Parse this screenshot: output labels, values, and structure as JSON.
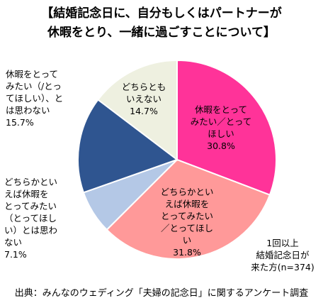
{
  "chart_data": {
    "type": "pie",
    "title_lines": [
      "【結婚記念日に、自分もしくはパートナーが",
      "休暇をとり、一緒に過ごすことについて】"
    ],
    "slices": [
      {
        "label_lines": [
          "休暇をとって",
          "みたい／とって",
          "ほしい"
        ],
        "value": 30.8,
        "value_label": "30.8%",
        "color": "#ff3399"
      },
      {
        "label_lines": [
          "どちらかとい",
          "えば休暇を",
          "とってみたい",
          "／とってほし",
          "い"
        ],
        "value": 31.8,
        "value_label": "31.8%",
        "color": "#ff9999"
      },
      {
        "label_lines": [
          "どちらかとい",
          "えば休暇を",
          "とってみたい",
          "（とってほし",
          "い）とは思わ",
          "ない"
        ],
        "value": 7.1,
        "value_label": "7.1%",
        "color": "#b4c8e6"
      },
      {
        "label_lines": [
          "休暇をとって",
          "みたい（/とっ",
          "てほしい）、と",
          "は思わない"
        ],
        "value": 15.7,
        "value_label": "15.7%",
        "color": "#2f5590"
      },
      {
        "label_lines": [
          "どちらとも",
          "いえない"
        ],
        "value": 14.7,
        "value_label": "14.7%",
        "color": "#eef0e0"
      }
    ],
    "start_angle_deg": 0,
    "direction": "clockwise"
  },
  "note_lines": [
    "1回以上",
    "結婚記念日が",
    "来た方(n=374)"
  ],
  "source": "出典：みんなのウェディング「夫婦の記念日」に関するアンケート調査"
}
